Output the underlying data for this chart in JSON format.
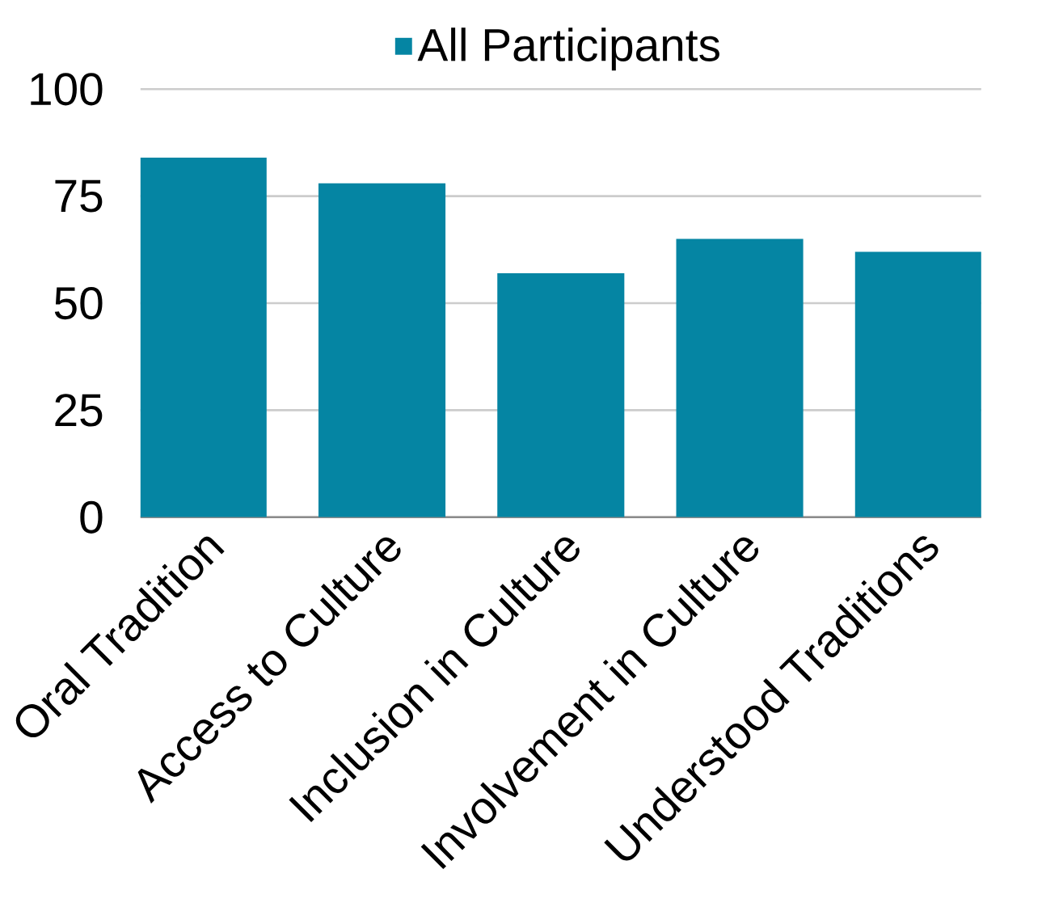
{
  "chart_data": {
    "type": "bar",
    "categories": [
      "Oral Tradition",
      "Access to Culture",
      "Inclusion in Culture",
      "Involvement in Culture",
      "Understood Traditions"
    ],
    "series": [
      {
        "name": "All Participants",
        "color": "#0585a3",
        "values": [
          84,
          78,
          57,
          65,
          62
        ]
      }
    ],
    "ylim": [
      0,
      100
    ],
    "yticks": [
      0,
      25,
      50,
      75,
      100
    ],
    "grid": "y",
    "legend": "top"
  }
}
